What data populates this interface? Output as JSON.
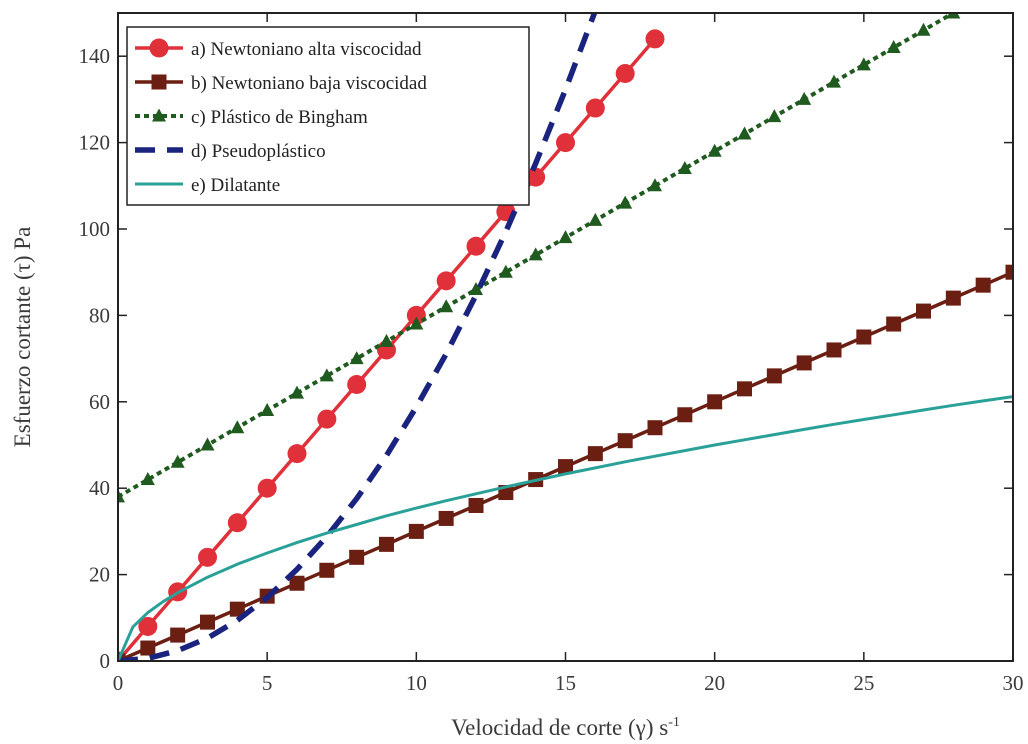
{
  "chart_data": {
    "type": "line",
    "title": "",
    "xlabel": "Velocidad de corte (γ) s",
    "xlabel_superscript": "-1",
    "ylabel": "Esfuerzo cortante (τ) Pa",
    "xlim": [
      0,
      30
    ],
    "ylim": [
      0,
      150
    ],
    "xticks": [
      "0",
      "5",
      "10",
      "15",
      "20",
      "25",
      "30"
    ],
    "yticks": [
      "0",
      "20",
      "40",
      "60",
      "80",
      "100",
      "120",
      "140"
    ],
    "grid": false,
    "legend_position": "top-left",
    "series": [
      {
        "name": "a) Newtoniano alta viscocidad",
        "color": "#e0303a",
        "line": "solid",
        "marker": "circle",
        "x": [
          0,
          1,
          2,
          3,
          4,
          5,
          6,
          7,
          8,
          9,
          10,
          11,
          12,
          13,
          14,
          15,
          16,
          17,
          18
        ],
        "y": [
          0,
          8,
          16,
          24,
          32,
          40,
          48,
          56,
          64,
          72,
          80,
          88,
          96,
          104,
          112,
          120,
          128,
          136,
          144
        ]
      },
      {
        "name": "b) Newtoniano baja viscocidad",
        "color": "#6b1e12",
        "line": "solid",
        "marker": "square",
        "x": [
          0,
          1,
          2,
          3,
          4,
          5,
          6,
          7,
          8,
          9,
          10,
          11,
          12,
          13,
          14,
          15,
          16,
          17,
          18,
          19,
          20,
          21,
          22,
          23,
          24,
          25,
          26,
          27,
          28,
          29,
          30
        ],
        "y": [
          0,
          3,
          6,
          9,
          12,
          15,
          18,
          21,
          24,
          27,
          30,
          33,
          36,
          39,
          42,
          45,
          48,
          51,
          54,
          57,
          60,
          63,
          66,
          69,
          72,
          75,
          78,
          81,
          84,
          87,
          90
        ]
      },
      {
        "name": "c) Plástico de Bingham",
        "color": "#1f5a1f",
        "line": "dotted",
        "marker": "triangle",
        "x": [
          0,
          1,
          2,
          3,
          4,
          5,
          6,
          7,
          8,
          9,
          10,
          11,
          12,
          13,
          14,
          15,
          16,
          17,
          18,
          19,
          20,
          21,
          22,
          23,
          24,
          25,
          26,
          27,
          28
        ],
        "y": [
          38,
          42,
          46,
          50,
          54,
          58,
          62,
          66,
          70,
          74,
          78,
          82,
          86,
          90,
          94,
          98,
          102,
          106,
          110,
          114,
          118,
          122,
          126,
          130,
          134,
          138,
          142,
          146,
          150
        ]
      },
      {
        "name": "d) Pseudoplástico",
        "color": "#1a237e",
        "line": "dashed",
        "marker": "none",
        "x": [
          0,
          1,
          2,
          3,
          4,
          5,
          6,
          7,
          8,
          9,
          10,
          11,
          12,
          13,
          14,
          15,
          16
        ],
        "y": [
          0,
          0.6,
          2.4,
          5.3,
          9.4,
          14.7,
          21.2,
          28.8,
          37.6,
          47.6,
          58.8,
          71.1,
          84.7,
          99.4,
          115.2,
          132.3,
          150.5
        ]
      },
      {
        "name": "e) Dilatante",
        "color": "#2aa198",
        "line": "solid",
        "marker": "none",
        "x": [
          0,
          0.5,
          1,
          1.5,
          2,
          3,
          4,
          5,
          6,
          7,
          8,
          9,
          10,
          11,
          12,
          13,
          14,
          15,
          16,
          17,
          18,
          19,
          20,
          21,
          22,
          23,
          24,
          25,
          26,
          27,
          28,
          29,
          30
        ],
        "y": [
          0,
          7.9,
          11.2,
          13.7,
          15.8,
          19.4,
          22.4,
          25.0,
          27.4,
          29.6,
          31.6,
          33.6,
          35.4,
          37.1,
          38.7,
          40.3,
          41.8,
          43.3,
          44.7,
          46.1,
          47.4,
          48.7,
          50.0,
          51.2,
          52.4,
          53.6,
          54.8,
          55.9,
          57.0,
          58.1,
          59.2,
          60.2,
          61.2
        ]
      }
    ]
  }
}
